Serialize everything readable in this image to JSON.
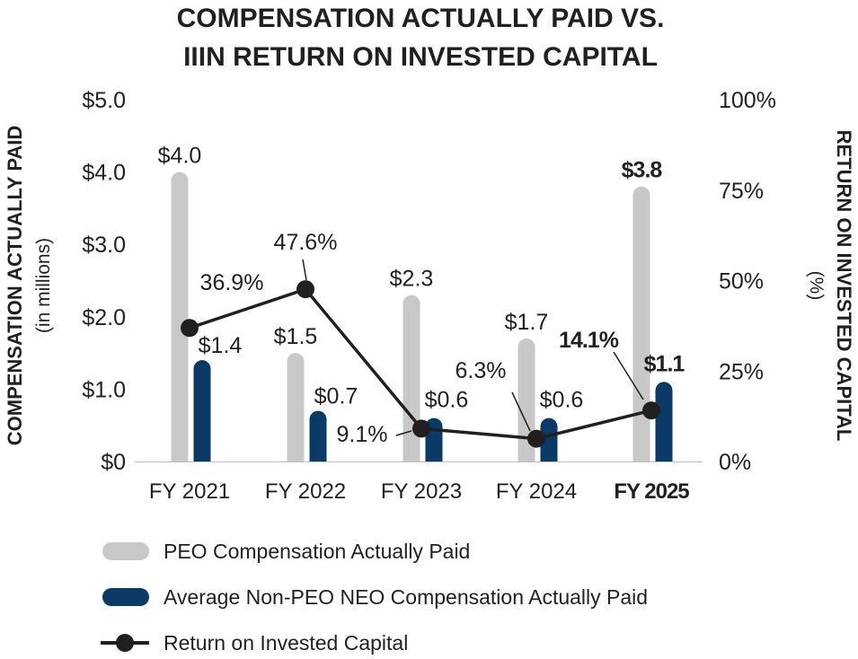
{
  "colors": {
    "peo": "#c8c8c9",
    "neo": "#0b3a66",
    "roic": "#231f20",
    "highlight": "#0b3a66",
    "text": "#231f20"
  },
  "chart_data": {
    "type": "bar",
    "title_lines": [
      "COMPENSATION ACTUALLY PAID VS.",
      "IIIN RETURN ON INVESTED CAPITAL"
    ],
    "categories": [
      "FY 2021",
      "FY 2022",
      "FY 2023",
      "FY 2024",
      "FY 2025"
    ],
    "highlight_category": "FY 2025",
    "ylabel": "COMPENSATION ACTUALLY PAID",
    "ylabel_sub": "(in millions)",
    "y2label": "RETURN ON INVESTED CAPITAL",
    "y2label_sub": "(%)",
    "ylim": [
      0,
      5
    ],
    "y2lim": [
      0,
      100
    ],
    "y_ticks": [
      "$0",
      "$1.0",
      "$2.0",
      "$3.0",
      "$4.0",
      "$5.0"
    ],
    "y_tick_values": [
      0,
      1,
      2,
      3,
      4,
      5
    ],
    "y2_ticks": [
      "0%",
      "25%",
      "50%",
      "75%",
      "100%"
    ],
    "y2_tick_values": [
      0,
      25,
      50,
      75,
      100
    ],
    "series": [
      {
        "name": "PEO Compensation Actually Paid",
        "kind": "bar",
        "axis": "left",
        "values": [
          4.0,
          1.5,
          2.3,
          1.7,
          3.8
        ],
        "labels": [
          "$4.0",
          "$1.5",
          "$2.3",
          "$1.7",
          "$3.8"
        ]
      },
      {
        "name": "Average Non-PEO NEO Compensation Actually Paid",
        "kind": "bar",
        "axis": "left",
        "values": [
          1.4,
          0.7,
          0.6,
          0.6,
          1.1
        ],
        "labels": [
          "$1.4",
          "$0.7",
          "$0.6",
          "$0.6",
          "$1.1"
        ]
      },
      {
        "name": "Return on Invested Capital",
        "kind": "line",
        "axis": "right",
        "values": [
          36.9,
          47.6,
          9.1,
          6.3,
          14.1
        ],
        "labels": [
          "36.9%",
          "47.6%",
          "9.1%",
          "6.3%",
          "14.1%"
        ]
      }
    ],
    "legend": [
      {
        "label": "PEO Compensation Actually Paid",
        "kind": "peo"
      },
      {
        "label": "Average Non-PEO NEO Compensation Actually Paid",
        "kind": "neo"
      },
      {
        "label": "Return on Invested Capital",
        "kind": "roic"
      }
    ]
  }
}
